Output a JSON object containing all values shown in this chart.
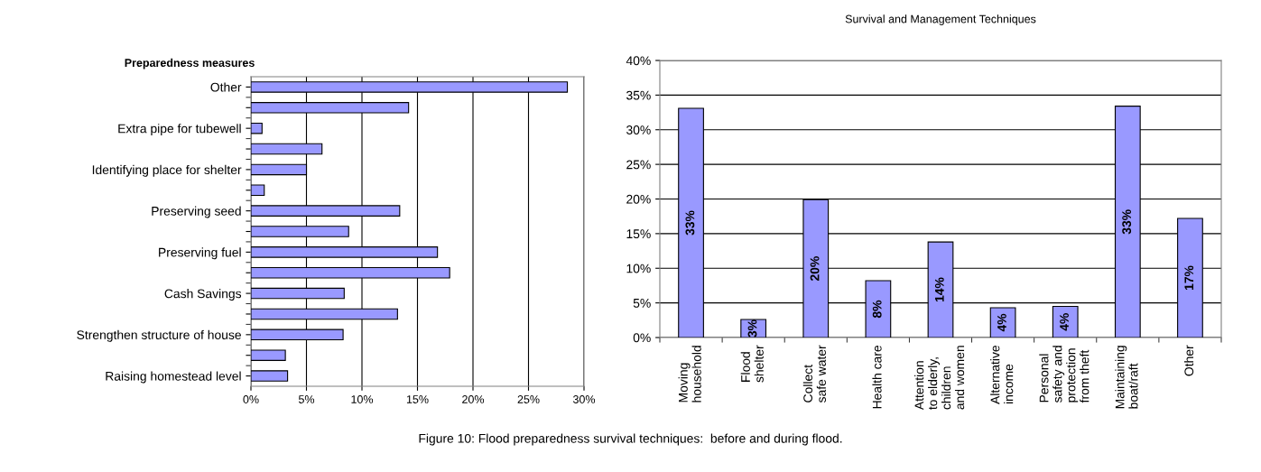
{
  "chart_data": [
    {
      "type": "bar",
      "orientation": "horizontal",
      "title": "Preparedness measures",
      "categories": [
        "Other",
        null,
        "Extra pipe for tubewell",
        null,
        "Identifying place for shelter",
        null,
        "Preserving seed",
        null,
        "Preserving fuel",
        null,
        "Cash Savings",
        null,
        "Strengthen structure of house",
        null,
        "Raising homestead level"
      ],
      "values": [
        28.5,
        14.2,
        1.0,
        6.4,
        5.0,
        1.2,
        13.4,
        8.8,
        16.8,
        17.9,
        8.4,
        13.2,
        8.3,
        3.1,
        3.3
      ],
      "color": "#9999ff",
      "xlim": [
        0,
        30
      ],
      "xticks": [
        {
          "value": 0,
          "label": "0%"
        },
        {
          "value": 5,
          "label": "5%"
        },
        {
          "value": 10,
          "label": "10%"
        },
        {
          "value": 15,
          "label": "15%"
        },
        {
          "value": 20,
          "label": "20%"
        },
        {
          "value": 25,
          "label": "25%"
        },
        {
          "value": 30,
          "label": "30%"
        }
      ],
      "grid": "x",
      "legend": false
    },
    {
      "type": "bar",
      "title": "Survival and Management Techniques",
      "categories": [
        "Moving\nhousehold",
        "Flood\nshelter",
        "Collect\nsafe water",
        "Health care",
        "Attention\nto elderly,\nchildren\nand women",
        "Alternative\nincome",
        "Personal\nsafety and\nprotection\nfrom theft",
        "Maintaining\nboat/raft",
        "Other"
      ],
      "values": [
        33.1,
        2.6,
        19.9,
        8.2,
        13.8,
        4.3,
        4.5,
        33.4,
        17.2
      ],
      "value_labels": [
        "33%",
        "3%",
        "20%",
        "8%",
        "14%",
        "4%",
        "4%",
        "33%",
        "17%"
      ],
      "color": "#9999ff",
      "ylim": [
        0,
        40
      ],
      "yticks": [
        {
          "value": 0,
          "label": "0%"
        },
        {
          "value": 5,
          "label": "5%"
        },
        {
          "value": 10,
          "label": "10%"
        },
        {
          "value": 15,
          "label": "15%"
        },
        {
          "value": 20,
          "label": "20%"
        },
        {
          "value": 25,
          "label": "25%"
        },
        {
          "value": 30,
          "label": "30%"
        },
        {
          "value": 35,
          "label": "35%"
        },
        {
          "value": 40,
          "label": "40%"
        }
      ],
      "grid": "y",
      "legend": false,
      "annotations": [
        "Figure 10: Flood preparedness survival techniques:  before and during flood."
      ]
    }
  ]
}
